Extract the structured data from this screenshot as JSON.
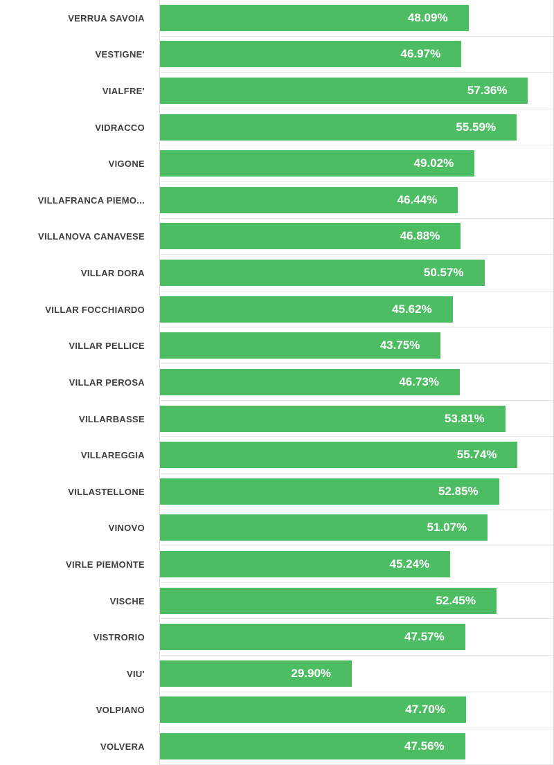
{
  "chart_data": {
    "type": "bar",
    "orientation": "horizontal",
    "title": "",
    "xlabel": "",
    "ylabel": "",
    "legend": "none",
    "grid": true,
    "xlim": [
      0,
      61.3
    ],
    "categories": [
      "VERRUA SAVOIA",
      "VESTIGNE'",
      "VIALFRE'",
      "VIDRACCO",
      "VIGONE",
      "VILLAFRANCA PIEMO...",
      "VILLANOVA CANAVESE",
      "VILLAR DORA",
      "VILLAR FOCCHIARDO",
      "VILLAR PELLICE",
      "VILLAR PEROSA",
      "VILLARBASSE",
      "VILLAREGGIA",
      "VILLASTELLONE",
      "VINOVO",
      "VIRLE PIEMONTE",
      "VISCHE",
      "VISTRORIO",
      "VIU'",
      "VOLPIANO",
      "VOLVERA"
    ],
    "values": [
      48.09,
      46.97,
      57.36,
      55.59,
      49.02,
      46.44,
      46.88,
      50.57,
      45.62,
      43.75,
      46.73,
      53.81,
      55.74,
      52.85,
      51.07,
      45.24,
      52.45,
      47.57,
      29.9,
      47.7,
      47.56
    ],
    "value_labels": [
      "48.09%",
      "46.97%",
      "57.36%",
      "55.59%",
      "49.02%",
      "46.44%",
      "46.88%",
      "50.57%",
      "45.62%",
      "43.75%",
      "46.73%",
      "53.81%",
      "55.74%",
      "52.85%",
      "51.07%",
      "45.24%",
      "52.45%",
      "47.57%",
      "29.90%",
      "47.70%",
      "47.56%"
    ],
    "colors": {
      "bar": "#4cbd63",
      "value_label": "#ffffff",
      "category_label": "#3e3e3e",
      "gridline": "#e8e8e8",
      "axis_line": "#d9d9d9",
      "background": "#ffffff"
    }
  }
}
